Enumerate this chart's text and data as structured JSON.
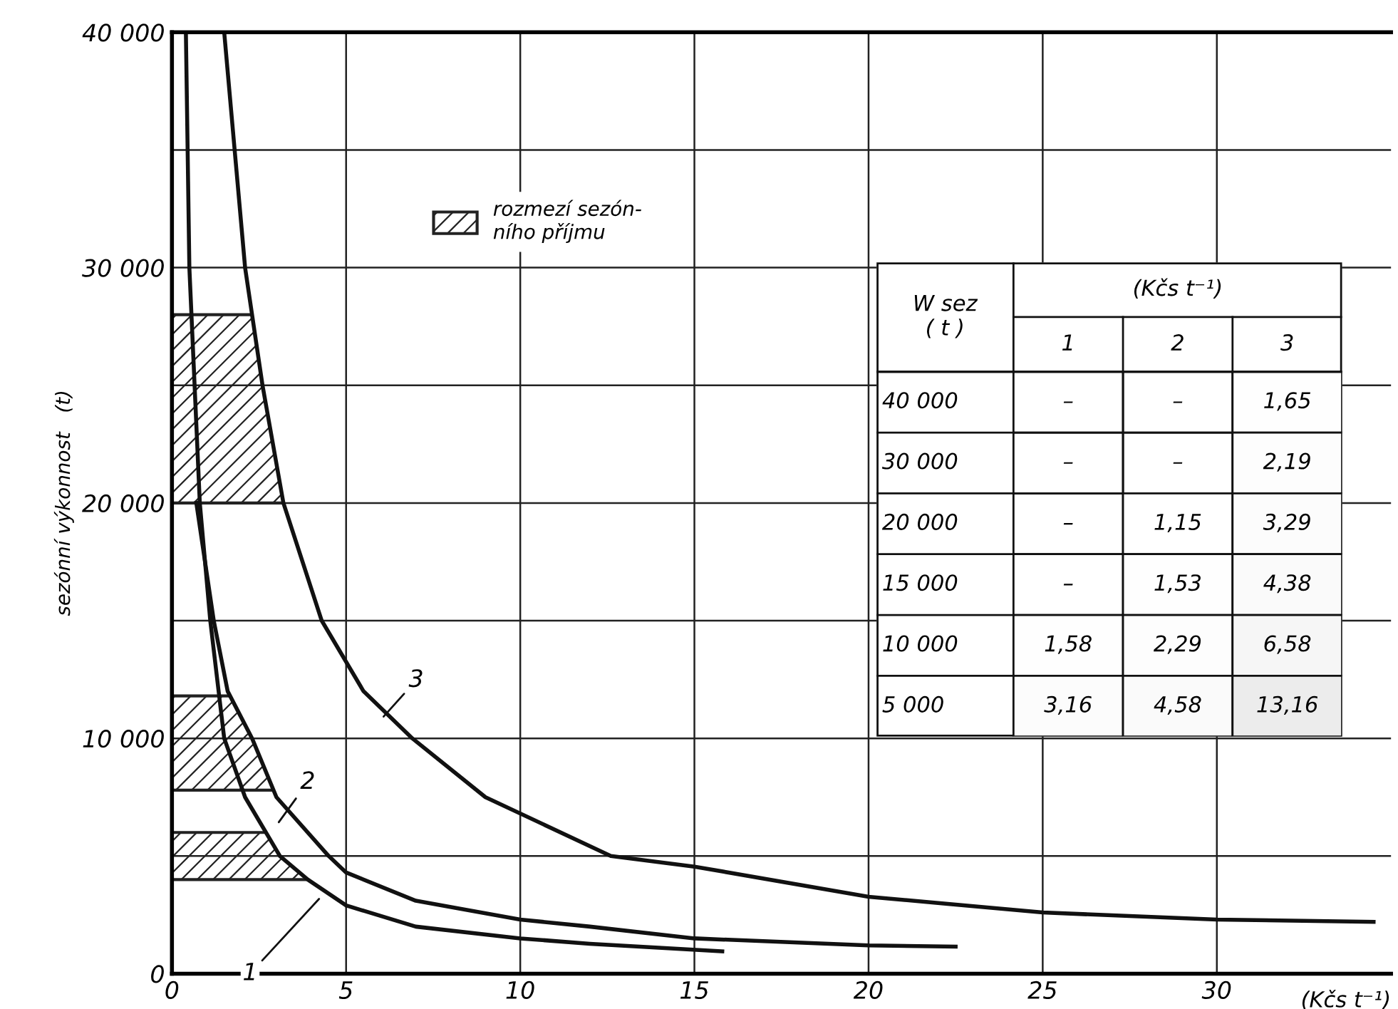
{
  "chart_data": [
    {
      "type": "line",
      "xlabel": "(Kčs t⁻¹)",
      "ylabel": "sezónní výkonnost   (t)",
      "xlim": [
        0,
        35
      ],
      "ylim": [
        0,
        40000
      ],
      "xticks": [
        0,
        5,
        10,
        15,
        20,
        25,
        30
      ],
      "yticks": [
        {
          "value": 0,
          "label": "0"
        },
        {
          "value": 5000,
          "label": null
        },
        {
          "value": 10000,
          "label": "10 000"
        },
        {
          "value": 15000,
          "label": null
        },
        {
          "value": 20000,
          "label": "20 000"
        },
        {
          "value": 25000,
          "label": null
        },
        {
          "value": 30000,
          "label": "30 000"
        },
        {
          "value": 35000,
          "label": null
        },
        {
          "value": 40000,
          "label": "40 000"
        }
      ],
      "grid": true,
      "legend": "top left",
      "line_style": "solid",
      "marker": "none",
      "series": [
        {
          "color": "#111111",
          "x": [
            0.4,
            0.5,
            0.8,
            1.1,
            1.5,
            2.1,
            3.1,
            3.9,
            5,
            7,
            10,
            12,
            15.8
          ],
          "values": [
            40000,
            30000,
            20000,
            15000,
            10000,
            7500,
            5000,
            4000,
            2900,
            2000,
            1500,
            1270,
            950
          ]
        },
        {
          "color": "#111111",
          "x": [
            0.7,
            1.2,
            1.6,
            2.3,
            3,
            4.5,
            5,
            7,
            10,
            12,
            15,
            20,
            22.5
          ],
          "values": [
            20000,
            15000,
            12000,
            10000,
            7500,
            5000,
            4300,
            3100,
            2300,
            2000,
            1500,
            1200,
            1150
          ]
        },
        {
          "color": "#111111",
          "x": [
            1.5,
            1.8,
            2.1,
            2.6,
            3.2,
            4.3,
            5.5,
            6.9,
            9,
            12.6,
            15,
            20,
            25,
            30,
            34.5
          ],
          "values": [
            40000,
            35000,
            30000,
            25000,
            20000,
            15000,
            12000,
            10000,
            7500,
            5000,
            4550,
            3270,
            2600,
            2300,
            2200
          ]
        }
      ],
      "bands": [
        {
          "axis": "y",
          "from": 4000,
          "to": 6000,
          "label": "rozmezí sezón-\nního příjmu"
        },
        {
          "axis": "y",
          "from": 7800,
          "to": 11800
        },
        {
          "axis": "y",
          "from": 20000,
          "to": 28000
        }
      ],
      "annotations": [
        {
          "text": "1",
          "x": 4.3,
          "y": 3300
        },
        {
          "text": "2",
          "x": 3.0,
          "y": 6300
        },
        {
          "text": "3",
          "x": 6.0,
          "y": 10800
        }
      ]
    },
    {
      "type": "heatmap",
      "title": "(Kčs t⁻¹)",
      "ylabel": "W sez\n( t )",
      "cells": [
        [
          null,
          null,
          1.65
        ],
        [
          null,
          null,
          2.19
        ],
        [
          null,
          1.15,
          3.29
        ],
        [
          null,
          1.53,
          4.38
        ],
        [
          1.58,
          2.29,
          6.58
        ],
        [
          3.16,
          4.58,
          13.16
        ]
      ],
      "categories": [
        "1",
        "2",
        "3"
      ],
      "y_categories": [
        "40 000",
        "30 000",
        "20 000",
        "15 000",
        "10 000",
        "5 000"
      ],
      "cell_labels": [
        [
          "–",
          "–",
          "1,65"
        ],
        [
          "–",
          "–",
          "2,19"
        ],
        [
          "–",
          "1,15",
          "3,29"
        ],
        [
          "–",
          "1,53",
          "4,38"
        ],
        [
          "1,58",
          "2,29",
          "6,58"
        ],
        [
          "3,16",
          "4,58",
          "13,16"
        ]
      ]
    }
  ]
}
